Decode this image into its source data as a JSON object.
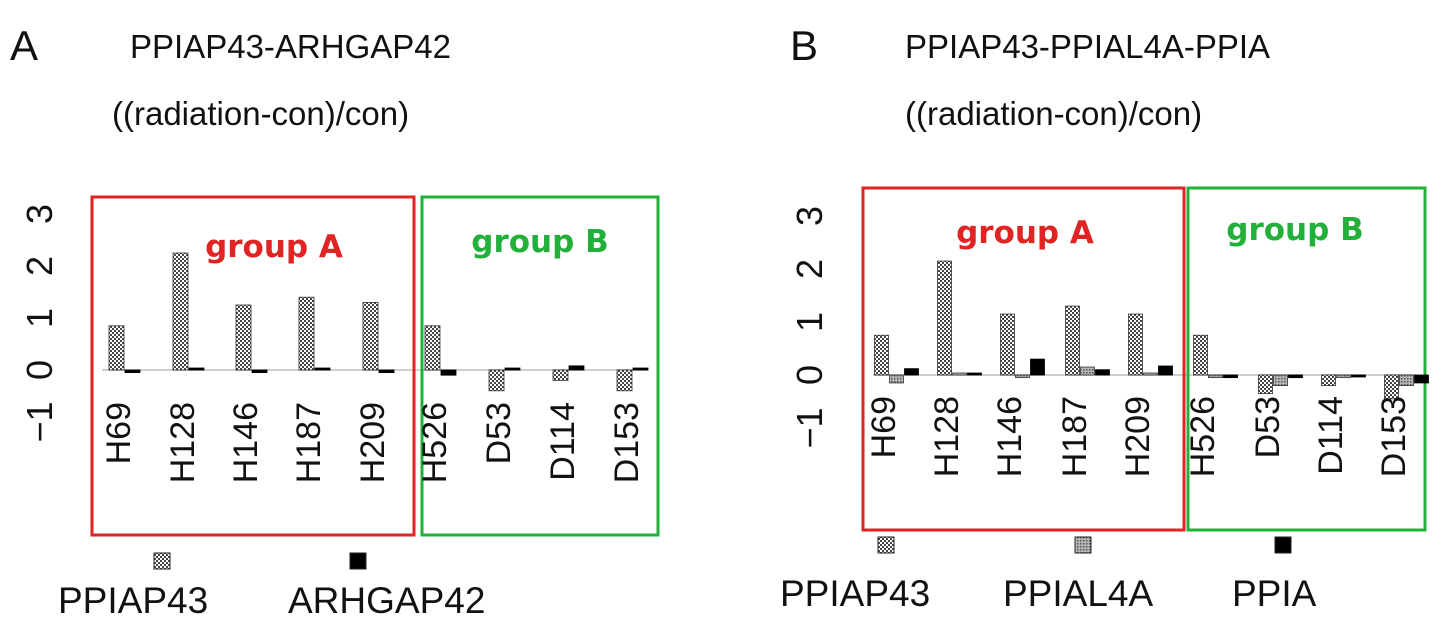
{
  "panels": [
    {
      "letter": "A",
      "title": "PPIAP43-ARHGAP42",
      "subtitle": "((radiation-con)/con)",
      "legend": [
        "PPIAP43",
        "ARHGAP42"
      ]
    },
    {
      "letter": "B",
      "title": "PPIAP43-PPIAL4A-PPIA",
      "subtitle": "((radiation-con)/con)",
      "legend": [
        "PPIAP43",
        "PPIAL4A",
        "PPIA"
      ]
    }
  ],
  "chart_data": [
    {
      "type": "bar",
      "title": "PPIAP43-ARHGAP42",
      "subtitle": "((radiation-con)/con)",
      "categories": [
        "H69",
        "H128",
        "H146",
        "H187",
        "H209",
        "H526",
        "D53",
        "D114",
        "D153"
      ],
      "series": [
        {
          "name": "PPIAP43",
          "values": [
            0.85,
            2.25,
            1.25,
            1.4,
            1.3,
            0.85,
            -0.4,
            -0.2,
            -0.4
          ],
          "color": "#555555",
          "pattern": "checker"
        },
        {
          "name": "ARHGAP42",
          "values": [
            -0.05,
            0.0,
            -0.05,
            0.0,
            -0.05,
            -0.1,
            0.0,
            0.08,
            0.0
          ],
          "color": "#000000",
          "pattern": "solid"
        }
      ],
      "ylim": [
        -1,
        3
      ],
      "yticks": [
        "-1",
        "0",
        "1",
        "2",
        "3"
      ],
      "groups": [
        {
          "label": "group A",
          "color": "#e02424",
          "categories": [
            "H69",
            "H128",
            "H146",
            "H187",
            "H209"
          ]
        },
        {
          "label": "group B",
          "color": "#22b03a",
          "categories": [
            "H526",
            "D53",
            "D114",
            "D153"
          ]
        }
      ],
      "legend_position": "bottom"
    },
    {
      "type": "bar",
      "title": "PPIAP43-PPIAL4A-PPIA",
      "subtitle": "((radiation-con)/con)",
      "categories": [
        "H69",
        "H128",
        "H146",
        "H187",
        "H209",
        "H526",
        "D53",
        "D114",
        "D153"
      ],
      "series": [
        {
          "name": "PPIAP43",
          "values": [
            0.75,
            2.15,
            1.15,
            1.3,
            1.15,
            0.75,
            -0.35,
            -0.2,
            -0.45
          ],
          "color": "#555555",
          "pattern": "checker"
        },
        {
          "name": "PPIAL4A",
          "values": [
            -0.15,
            0.0,
            -0.05,
            0.15,
            0.0,
            -0.05,
            -0.2,
            -0.05,
            -0.2
          ],
          "color": "#888888",
          "pattern": "dots"
        },
        {
          "name": "PPIA",
          "values": [
            0.12,
            0.0,
            0.3,
            0.1,
            0.17,
            -0.05,
            -0.05,
            -0.03,
            -0.15
          ],
          "color": "#000000",
          "pattern": "solid"
        }
      ],
      "ylim": [
        -1,
        3
      ],
      "yticks": [
        "-1",
        "0",
        "1",
        "2",
        "3"
      ],
      "groups": [
        {
          "label": "group A",
          "color": "#e02424",
          "categories": [
            "H69",
            "H128",
            "H146",
            "H187",
            "H209"
          ]
        },
        {
          "label": "group B",
          "color": "#22b03a",
          "categories": [
            "H526",
            "D53",
            "D114",
            "D153"
          ]
        }
      ],
      "legend_position": "bottom"
    }
  ]
}
